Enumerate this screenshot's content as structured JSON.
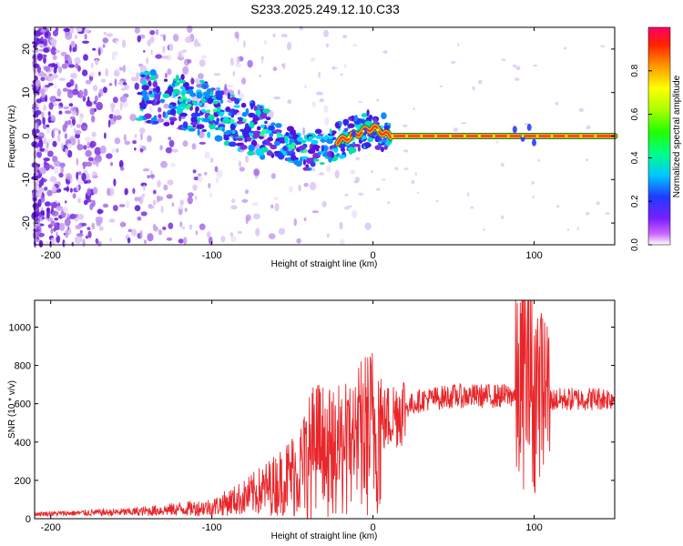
{
  "title": "S233.2025.249.12.10.C33",
  "chart_data": [
    {
      "type": "heatmap",
      "name": "spectrogram",
      "xlabel": "Height of straight line (km)",
      "ylabel": "Frequency (Hz)",
      "xlim": [
        -210,
        150
      ],
      "ylim": [
        -25,
        25
      ],
      "xticks": [
        -200,
        -100,
        0,
        100
      ],
      "yticks": [
        -20,
        -10,
        0,
        10,
        20
      ],
      "colorbar": {
        "label": "Normalized spectral amplitude",
        "range": [
          0,
          1
        ],
        "ticks": [
          "0.0",
          "0.2",
          "0.4",
          "0.6",
          "0.8"
        ],
        "colormap": "rainbow"
      },
      "ridge": {
        "x": [
          -140,
          -120,
          -100,
          -85,
          -70,
          -55,
          -40,
          -30,
          -20,
          -10,
          0,
          10,
          150
        ],
        "y": [
          9,
          8,
          6,
          3,
          1,
          -1,
          -4,
          -2,
          -1,
          0.5,
          2,
          0,
          0
        ]
      },
      "colors": {
        "noise": "#d9c2f2",
        "band_outline": "#1e7a1e",
        "band_core": "#ff3333"
      }
    },
    {
      "type": "line",
      "name": "snr",
      "xlabel": "Height of straight line (km)",
      "ylabel": "SNR (10 * v/v)",
      "xlim": [
        -210,
        150
      ],
      "ylim": [
        0,
        1140
      ],
      "xticks": [
        -200,
        -100,
        0,
        100
      ],
      "yticks": [
        0,
        200,
        400,
        600,
        800,
        1000
      ],
      "envelope": {
        "x": [
          -210,
          -150,
          -100,
          -80,
          -60,
          -45,
          -35,
          -25,
          -15,
          -5,
          5,
          15,
          30,
          50,
          80,
          90,
          95,
          100,
          105,
          110,
          150
        ],
        "y": [
          25,
          35,
          60,
          110,
          180,
          260,
          380,
          330,
          380,
          440,
          500,
          560,
          620,
          640,
          640,
          650,
          780,
          650,
          700,
          620,
          630
        ]
      },
      "series": [
        {
          "name": "SNR",
          "color": "#e8262a"
        }
      ]
    }
  ]
}
